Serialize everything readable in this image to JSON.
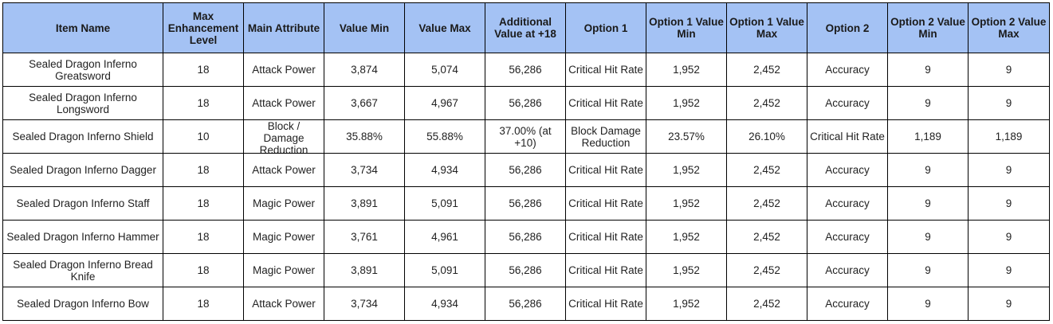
{
  "headers": [
    "Item Name",
    "Max Enhancement Level",
    "Main Attribute",
    "Value Min",
    "Value Max",
    "Additional Value at +18",
    "Option 1",
    "Option 1 Value Min",
    "Option 1 Value Max",
    "Option 2",
    "Option 2 Value Min",
    "Option 2 Value Max"
  ],
  "rows": [
    [
      "Sealed Dragon Inferno Greatsword",
      "18",
      "Attack Power",
      "3,874",
      "5,074",
      "56,286",
      "Critical Hit Rate",
      "1,952",
      "2,452",
      "Accuracy",
      "9",
      "9"
    ],
    [
      "Sealed Dragon Inferno Longsword",
      "18",
      "Attack Power",
      "3,667",
      "4,967",
      "56,286",
      "Critical Hit Rate",
      "1,952",
      "2,452",
      "Accuracy",
      "9",
      "9"
    ],
    [
      "Sealed Dragon Inferno Shield",
      "10",
      "Block / Damage Reduction",
      "35.88%",
      "55.88%",
      "37.00% (at +10)",
      "Block Damage Reduction",
      "23.57%",
      "26.10%",
      "Critical Hit Rate",
      "1,189",
      "1,189"
    ],
    [
      "Sealed Dragon Inferno Dagger",
      "18",
      "Attack Power",
      "3,734",
      "4,934",
      "56,286",
      "Critical Hit Rate",
      "1,952",
      "2,452",
      "Accuracy",
      "9",
      "9"
    ],
    [
      "Sealed Dragon Inferno Staff",
      "18",
      "Magic Power",
      "3,891",
      "5,091",
      "56,286",
      "Critical Hit Rate",
      "1,952",
      "2,452",
      "Accuracy",
      "9",
      "9"
    ],
    [
      "Sealed Dragon Inferno Hammer",
      "18",
      "Magic Power",
      "3,761",
      "4,961",
      "56,286",
      "Critical Hit Rate",
      "1,952",
      "2,452",
      "Accuracy",
      "9",
      "9"
    ],
    [
      "Sealed Dragon Inferno Bread Knife",
      "18",
      "Magic Power",
      "3,891",
      "5,091",
      "56,286",
      "Critical Hit Rate",
      "1,952",
      "2,452",
      "Accuracy",
      "9",
      "9"
    ],
    [
      "Sealed Dragon Inferno Bow",
      "18",
      "Attack Power",
      "3,734",
      "4,934",
      "56,286",
      "Critical Hit Rate",
      "1,952",
      "2,452",
      "Accuracy",
      "9",
      "9"
    ]
  ]
}
